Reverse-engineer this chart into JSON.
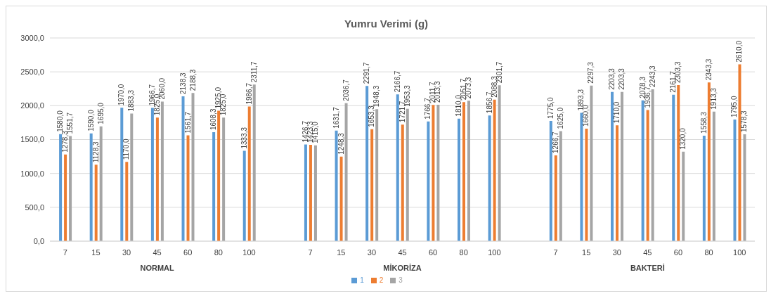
{
  "chart_data": {
    "type": "bar",
    "title": "Yumru Verimi (g)",
    "categories": [
      "7",
      "15",
      "30",
      "45",
      "60",
      "80",
      "100",
      null,
      "7",
      "15",
      "30",
      "45",
      "60",
      "80",
      "100",
      null,
      "7",
      "15",
      "30",
      "45",
      "60",
      "80",
      "100"
    ],
    "annotations": [
      "NORMAL",
      "MİKORİZA",
      "BAKTERİ"
    ],
    "series": [
      {
        "name": "1",
        "color": "#5b9bd5",
        "values": [
          1580.0,
          1590.0,
          1970.0,
          1966.7,
          2138.3,
          1608.3,
          1333.3,
          null,
          1426.7,
          1631.7,
          2291.7,
          2166.7,
          1766.7,
          1810.0,
          1856.7,
          null,
          1775.0,
          1893.3,
          2203.3,
          2078.3,
          2161.7,
          1558.3,
          1795.0
        ],
        "value_labels": [
          "1580,0",
          "1590,0",
          "1970,0",
          "1966,7",
          "2138,3",
          "1608,3",
          "1333,3",
          null,
          "1426,7",
          "1631,7",
          "2291,7",
          "2166,7",
          "1766,7",
          "1810,0",
          "1856,7",
          null,
          "1775,0",
          "1893,3",
          "2203,3",
          "2078,3",
          "2161,7",
          "1558,3",
          "1795,0"
        ]
      },
      {
        "name": "2",
        "color": "#ed7d31",
        "values": [
          1278.3,
          1128.3,
          1170.0,
          1825.0,
          1561.7,
          1925.0,
          1986.7,
          null,
          1423.3,
          1248.3,
          1653.3,
          1721.7,
          2011.7,
          2051.7,
          2088.3,
          null,
          1266.7,
          1660.0,
          1710.0,
          1936.7,
          2303.3,
          2343.3,
          2610.0
        ],
        "value_labels": [
          "1278,3",
          "1128,3",
          "1170,0",
          "1825,0",
          "1561,7",
          "1925,0",
          "1986,7",
          null,
          "1423,3",
          "1248,3",
          "1653,3",
          "1721,7",
          "2011,7",
          "2051,7",
          "2088,3",
          null,
          "1266,7",
          "1660,0",
          "1710,0",
          "1936,7",
          "2303,3",
          "2343,3",
          "2610,0"
        ]
      },
      {
        "name": "3",
        "color": "#a5a5a5",
        "values": [
          1551.7,
          1695.0,
          1883.3,
          2060.0,
          2188.3,
          1825.0,
          2311.7,
          null,
          1415.0,
          2036.7,
          1948.3,
          1953.3,
          2013.3,
          2073.3,
          2301.7,
          null,
          1625.0,
          2297.3,
          2203.3,
          2243.3,
          1320.0,
          1913.3,
          1578.3
        ],
        "value_labels": [
          "1551,7",
          "1695,0",
          "1883,3",
          "2060,0",
          "2188,3",
          "1825,0",
          "2311,7",
          null,
          "1415,0",
          "2036,7",
          "1948,3",
          "1953,3",
          "2013,3",
          "2073,3",
          "2301,7",
          null,
          "1625,0",
          "2297,3",
          "2203,3",
          "2243,3",
          "1320,0",
          "1913,3",
          "1578,3"
        ]
      }
    ],
    "ylim": [
      0,
      3000
    ],
    "yticks": [
      {
        "value": 0,
        "label": "0,0"
      },
      {
        "value": 500,
        "label": "500,0"
      },
      {
        "value": 1000,
        "label": "1000,0"
      },
      {
        "value": 1500,
        "label": "1500,0"
      },
      {
        "value": 2000,
        "label": "2000,0"
      },
      {
        "value": 2500,
        "label": "2500,0"
      },
      {
        "value": 3000,
        "label": "3000,0"
      }
    ],
    "grid": "y",
    "legend": "bottom"
  }
}
